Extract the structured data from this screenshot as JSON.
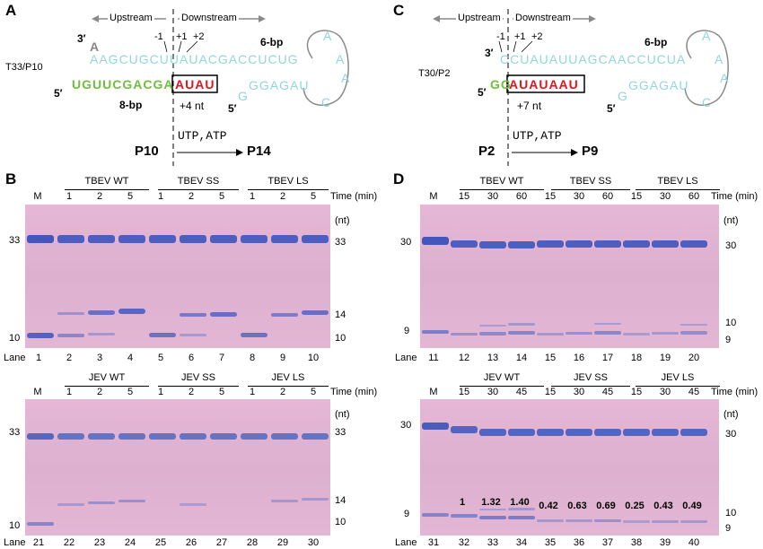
{
  "panels": {
    "A": {
      "label": "A",
      "upstream": "Upstream",
      "downstream": "Downstream",
      "name": "T33/P10",
      "pos_m1": "-1",
      "pos_p1": "+1",
      "pos_p2": "+2",
      "bp6": "6-bp",
      "bp8": "8-bp",
      "three_prime": "3′",
      "five_prime_left": "5′",
      "five_prime_hair": "5′",
      "top_overhang": "A",
      "top_seq": "AAGCUGCUUAUACGACCUCUG",
      "primer_seq": "UGUUCGACGA",
      "added_seq": "AUAU",
      "hair_g": "G",
      "hair_seq": "GGAGAU",
      "loop_a1": "A",
      "loop_a2": "A",
      "loop_a3": "A",
      "loop_c": "C",
      "added_nt": "+4 nt",
      "ntps": "UTP,ATP",
      "from": "P10",
      "to": "P14"
    },
    "C": {
      "label": "C",
      "upstream": "Upstream",
      "downstream": "Downstream",
      "name": "T30/P2",
      "pos_m1": "-1",
      "pos_p1": "+1",
      "pos_p2": "+2",
      "bp6": "6-bp",
      "three_prime": "3′",
      "five_prime_left": "5′",
      "five_prime_hair": "5′",
      "top_seq": "CCUAUAUUAGCAACCUCUA",
      "primer_seq": "GG",
      "added_seq": "AUAUAAU",
      "hair_g": "G",
      "hair_seq": "GGAGAU",
      "loop_a1": "A",
      "loop_a2": "A",
      "loop_a3": "A",
      "loop_c": "C",
      "added_nt": "+7 nt",
      "ntps": "UTP,ATP",
      "from": "P2",
      "to": "P9"
    }
  },
  "gel_B_top": {
    "panel_label": "B",
    "marker": "M",
    "groups": [
      "TBEV WT",
      "TBEV SS",
      "TBEV LS"
    ],
    "times": [
      "1",
      "2",
      "5",
      "1",
      "2",
      "5",
      "1",
      "2",
      "5"
    ],
    "time_label": "Time (min)",
    "nt_label": "(nt)",
    "left_ticks": [
      "33",
      "10"
    ],
    "right_ticks": [
      "33",
      "14",
      "10"
    ],
    "lane_label": "Lane",
    "lanes": [
      "1",
      "2",
      "3",
      "4",
      "5",
      "6",
      "7",
      "8",
      "9",
      "10"
    ]
  },
  "gel_B_bottom": {
    "marker": "M",
    "groups": [
      "JEV WT",
      "JEV SS",
      "JEV LS"
    ],
    "times": [
      "1",
      "2",
      "5",
      "1",
      "2",
      "5",
      "1",
      "2",
      "5"
    ],
    "time_label": "Time (min)",
    "nt_label": "(nt)",
    "left_ticks": [
      "33",
      "10"
    ],
    "right_ticks": [
      "33",
      "14",
      "10"
    ],
    "lane_label": "Lane",
    "lanes": [
      "21",
      "22",
      "23",
      "24",
      "25",
      "26",
      "27",
      "28",
      "29",
      "30"
    ]
  },
  "gel_D_top": {
    "panel_label": "D",
    "marker": "M",
    "groups": [
      "TBEV WT",
      "TBEV SS",
      "TBEV LS"
    ],
    "times": [
      "15",
      "30",
      "60",
      "15",
      "30",
      "60",
      "15",
      "30",
      "60"
    ],
    "time_label": "Time (min)",
    "nt_label": "(nt)",
    "left_ticks": [
      "30",
      "9"
    ],
    "right_ticks": [
      "30",
      "10",
      "9"
    ],
    "lane_label": "Lane",
    "lanes": [
      "11",
      "12",
      "13",
      "14",
      "15",
      "16",
      "17",
      "18",
      "19",
      "20"
    ]
  },
  "gel_D_bottom": {
    "marker": "M",
    "groups": [
      "JEV WT",
      "JEV SS",
      "JEV LS"
    ],
    "times": [
      "15",
      "30",
      "45",
      "15",
      "30",
      "45",
      "15",
      "30",
      "45"
    ],
    "time_label": "Time (min)",
    "nt_label": "(nt)",
    "left_ticks": [
      "30",
      "9"
    ],
    "right_ticks": [
      "30",
      "10",
      "9"
    ],
    "lane_label": "Lane",
    "lanes": [
      "31",
      "32",
      "33",
      "34",
      "35",
      "36",
      "37",
      "38",
      "39",
      "40"
    ],
    "ratios": [
      "1",
      "1.32",
      "1.40",
      "0.42",
      "0.63",
      "0.69",
      "0.25",
      "0.43",
      "0.49"
    ]
  },
  "colors": {
    "gel_band": "#3f4fb8",
    "rna_cyan": "#8fd7dc",
    "rna_green": "#6fbf3a",
    "rna_red": "#e8121c"
  }
}
